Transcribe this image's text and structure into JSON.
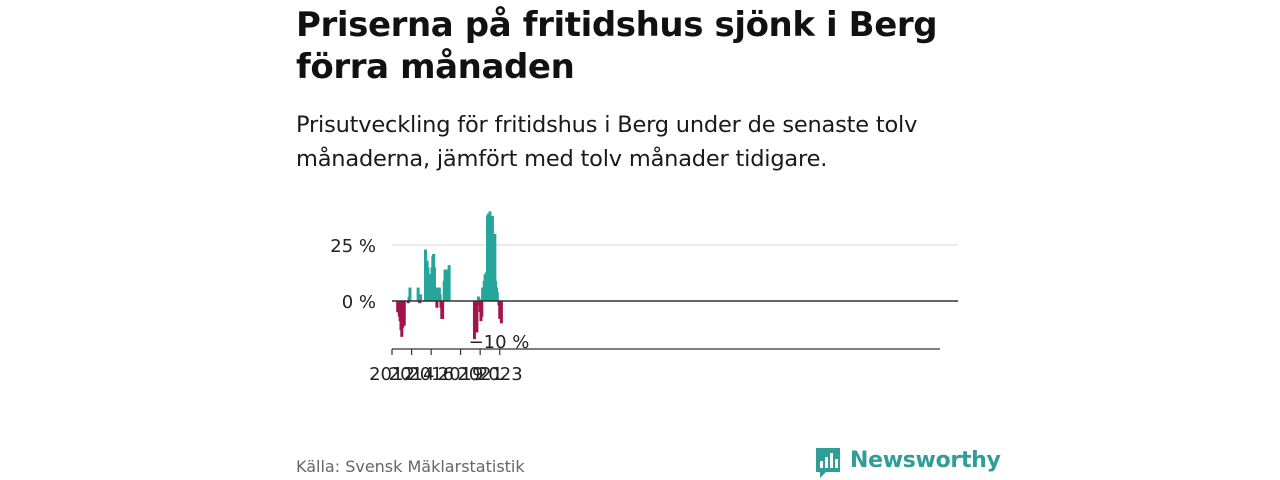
{
  "header": {
    "title": "Priserna på fritidshus sjönk i Berg förra månaden",
    "subtitle": "Prisutveckling för fritidshus i Berg under de senaste tolv månaderna, jämfört med tolv månader tidigare."
  },
  "footer": {
    "source": "Källa: Svensk Mäklarstatistik",
    "brand": "Newsworthy",
    "brand_icon": "bar-chart-logo-icon"
  },
  "colors": {
    "positive": "#26a69a",
    "negative": "#a3144a",
    "brand": "#2f9e98"
  },
  "chart_data": {
    "type": "bar",
    "ytick_labels": [
      "0 %",
      "25 %"
    ],
    "ytick_values": [
      0,
      25
    ],
    "xtick_labels": [
      "2012",
      "2014",
      "2016",
      "2019",
      "2021",
      "2023"
    ],
    "xtick_dates": [
      "2012-01",
      "2014-01",
      "2016-01",
      "2019-01",
      "2021-01",
      "2023-01"
    ],
    "ylim": [
      -20,
      40
    ],
    "grid": true,
    "last_label": "−10 %",
    "months": [
      "2012-08",
      "2012-09",
      "2012-10",
      "2012-11",
      "2012-12",
      "2013-01",
      "2013-02",
      "2013-03",
      "2013-04",
      "2013-09",
      "2013-10",
      "2013-11",
      "2014-09",
      "2014-11",
      "2014-12",
      "2015-06",
      "2015-07",
      "2015-08",
      "2015-09",
      "2015-10",
      "2015-11",
      "2015-12",
      "2016-01",
      "2016-02",
      "2016-03",
      "2016-04",
      "2016-05",
      "2016-06",
      "2016-07",
      "2016-08",
      "2016-10",
      "2016-11",
      "2016-12",
      "2017-01",
      "2017-02",
      "2017-03",
      "2017-05",
      "2017-06",
      "2017-07",
      "2017-08",
      "2017-10",
      "2017-11",
      "2020-06",
      "2020-07",
      "2020-08",
      "2020-09",
      "2020-10",
      "2020-11",
      "2020-12",
      "2021-01",
      "2021-02",
      "2021-03",
      "2021-04",
      "2021-05",
      "2021-06",
      "2021-07",
      "2021-08",
      "2021-09",
      "2021-10",
      "2021-11",
      "2022-01",
      "2022-02",
      "2022-03",
      "2022-04",
      "2022-05",
      "2022-06",
      "2022-07",
      "2022-08",
      "2022-09",
      "2022-10",
      "2022-12",
      "2023-01",
      "2023-02",
      "2023-03"
    ],
    "values": [
      -5,
      -5,
      -7,
      -9,
      -13,
      -16,
      -12,
      -11,
      -11,
      -1,
      2,
      6,
      6,
      -1,
      3,
      23,
      12,
      18,
      15,
      12,
      10,
      12,
      12,
      15,
      20,
      21,
      15,
      4,
      6,
      -3,
      6,
      6,
      3,
      -3,
      -8,
      -8,
      9,
      14,
      14,
      12,
      14,
      16,
      -17,
      -14,
      -14,
      -14,
      -2,
      2,
      1,
      -5,
      -9,
      -7,
      6,
      1,
      9,
      12,
      4,
      13,
      38,
      39,
      40,
      36,
      36,
      38,
      25,
      24,
      30,
      9,
      6,
      4,
      -2,
      -8,
      -6,
      -10
    ]
  }
}
